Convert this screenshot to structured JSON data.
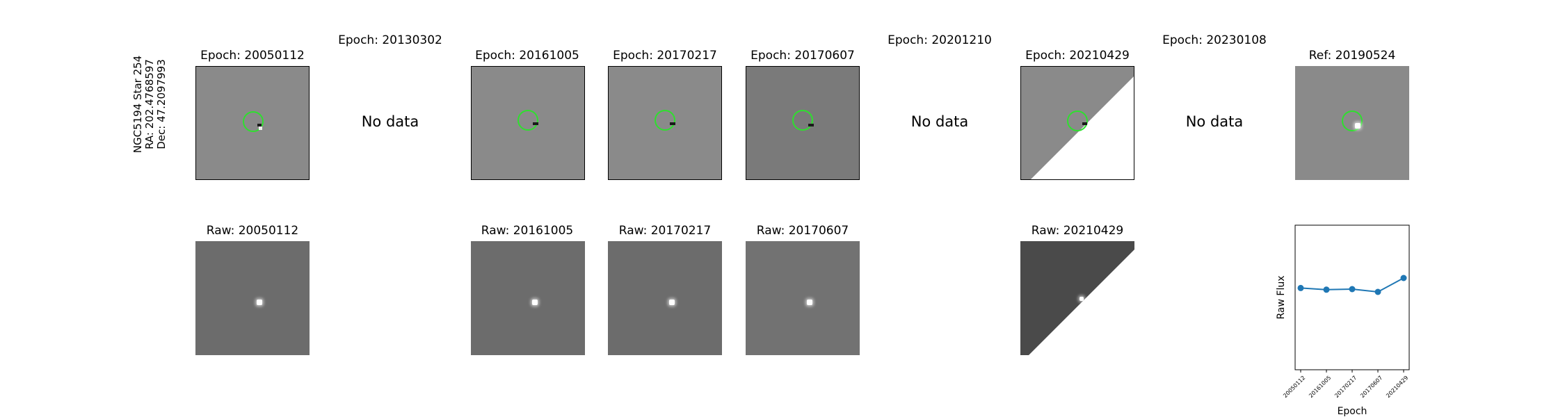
{
  "row_label": {
    "line1": "NGC5194 Star 254",
    "line2": "RA: 202.4768597",
    "line3": "Dec: 47.2097993"
  },
  "top_titles": {
    "e1": "Epoch: 20050112",
    "e2": "Epoch: 20130302",
    "e3": "Epoch: 20161005",
    "e4": "Epoch: 20170217",
    "e5": "Epoch: 20170607",
    "e6": "Epoch: 20201210",
    "e7": "Epoch: 20210429",
    "e8": "Epoch: 20230108",
    "ref": "Ref: 20190524"
  },
  "no_data_label": "No data",
  "raw_titles": {
    "r1": "Raw: 20050112",
    "r3": "Raw: 20161005",
    "r4": "Raw: 20170217",
    "r5": "Raw: 20170607",
    "r7": "Raw: 20210429"
  },
  "colors": {
    "marker_circle": "#2ee02e",
    "line": "#1f77b4"
  },
  "chart_data": {
    "type": "line",
    "xlabel": "Epoch",
    "ylabel": "Raw Flux",
    "categories": [
      "20050112",
      "20161005",
      "20170217",
      "20170607",
      "20210429"
    ],
    "values": [
      0.47,
      0.44,
      0.45,
      0.4,
      0.65
    ],
    "ylim": [
      -1,
      1.6
    ],
    "grid": false
  }
}
